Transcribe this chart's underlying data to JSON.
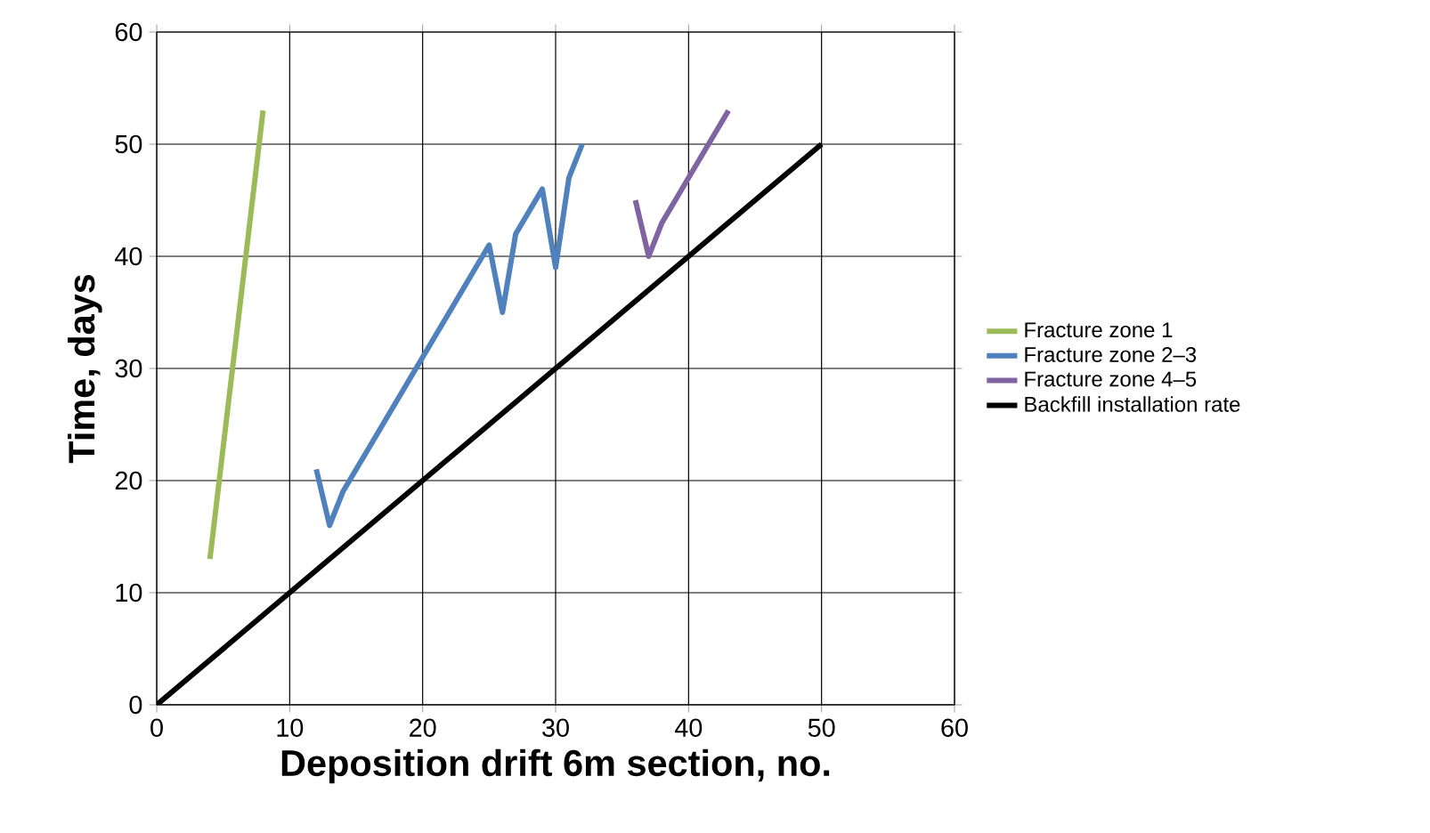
{
  "chart_data": {
    "type": "line",
    "xlabel": "Deposition drift 6m section, no.",
    "ylabel": "Time, days",
    "xlim": [
      0,
      60
    ],
    "ylim": [
      0,
      60
    ],
    "xticks": [
      0,
      10,
      20,
      30,
      40,
      50,
      60
    ],
    "yticks": [
      0,
      10,
      20,
      30,
      40,
      50,
      60
    ],
    "grid": true,
    "legend": "right",
    "series": [
      {
        "name": "Fracture zone 1",
        "color": "#9bbb59",
        "x": [
          4,
          8
        ],
        "values": [
          13,
          53
        ]
      },
      {
        "name": "Fracture zone 2–3",
        "color": "#4f81bd",
        "x": [
          12,
          13,
          14,
          16,
          18,
          20,
          22,
          24,
          25,
          26,
          27,
          29,
          30,
          31,
          32
        ],
        "values": [
          21,
          16,
          19,
          23,
          27,
          31,
          35,
          39,
          41,
          35,
          42,
          46,
          39,
          47,
          50
        ]
      },
      {
        "name": "Fracture zone 4–5",
        "color": "#8064a2",
        "x": [
          36,
          37,
          38,
          40,
          43
        ],
        "values": [
          45,
          40,
          43,
          47,
          53
        ]
      },
      {
        "name": "Backfill installation rate",
        "color": "#000000",
        "x": [
          0,
          50
        ],
        "values": [
          0,
          50
        ]
      }
    ]
  }
}
